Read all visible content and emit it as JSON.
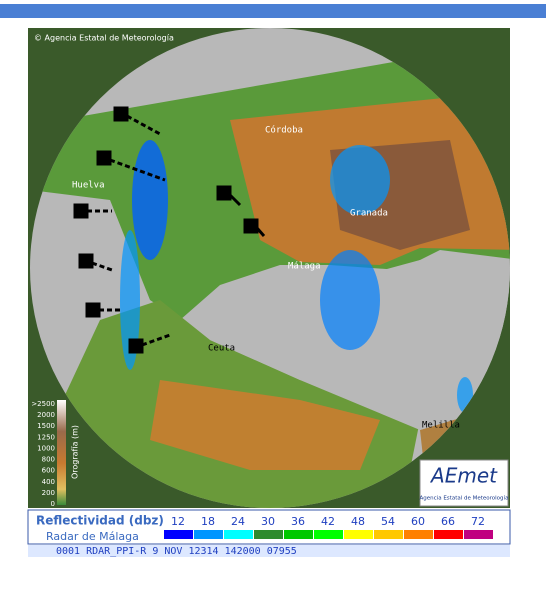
{
  "map": {
    "copyright": "© Agencia Estatal de Meteorología",
    "cities": [
      {
        "label": "Córdoba"
      },
      {
        "label": "Huelva"
      },
      {
        "label": "Granada"
      },
      {
        "label": "Málaga"
      },
      {
        "label": "Ceuta"
      },
      {
        "label": "Melilla"
      }
    ]
  },
  "orography": {
    "title": "Orografía (m)",
    "levels": [
      ">2500",
      "2000",
      "1500",
      "1250",
      "1000",
      "800",
      "600",
      "400",
      "200",
      "0"
    ]
  },
  "logo": {
    "name": "AEmet",
    "subtitle": "Agencia Estatal de Meteorología"
  },
  "legend": {
    "title": "Reflectividad (dbz)",
    "subtitle": "Radar de Málaga",
    "steps": [
      {
        "value": 12,
        "color": "#0000ff"
      },
      {
        "value": 18,
        "color": "#0096ff"
      },
      {
        "value": 24,
        "color": "#00ffff"
      },
      {
        "value": 30,
        "color": "#2e8b2e"
      },
      {
        "value": 36,
        "color": "#00c800"
      },
      {
        "value": 42,
        "color": "#00ff00"
      },
      {
        "value": 48,
        "color": "#ffff00"
      },
      {
        "value": 54,
        "color": "#ffc800"
      },
      {
        "value": 60,
        "color": "#ff8000"
      },
      {
        "value": 66,
        "color": "#ff0000"
      },
      {
        "value": 72,
        "color": "#c00080"
      }
    ]
  },
  "status_line": "0001 RDAR_PPI-R   9 NOV 12314 142000 07955"
}
